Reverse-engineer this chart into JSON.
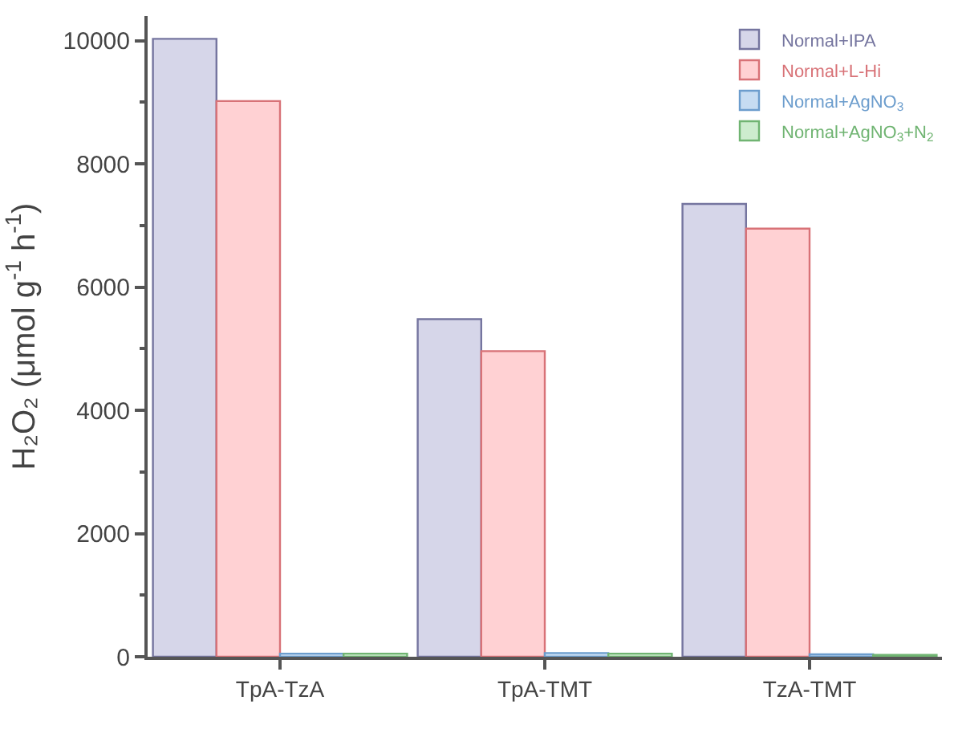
{
  "chart_data": {
    "type": "bar",
    "ylabel": "H₂O₂ (μmol g$^{-1}$ h$^{-1}$)",
    "categories": [
      "TpA-TzA",
      "TpA-TMT",
      "TzA-TMT"
    ],
    "series": [
      {
        "name": "Normal+IPA",
        "color": "#d6d6e9",
        "values": [
          10030,
          5480,
          7350
        ]
      },
      {
        "name": "Normal+L-Hi",
        "color": "#ffd1d3",
        "values": [
          9020,
          4960,
          6950
        ]
      },
      {
        "name": "Normal+AgNO$_{3}$",
        "color": "#c6dcf2",
        "values": [
          50,
          60,
          40
        ]
      },
      {
        "name": "Normal+AgNO$_{3}$+N$_{2}$",
        "color": "#cdecce",
        "values": [
          50,
          50,
          30
        ]
      }
    ],
    "ylim": [
      0,
      10400
    ],
    "yticks": [
      0,
      2000,
      4000,
      6000,
      8000,
      10000
    ],
    "legend": "top right"
  }
}
